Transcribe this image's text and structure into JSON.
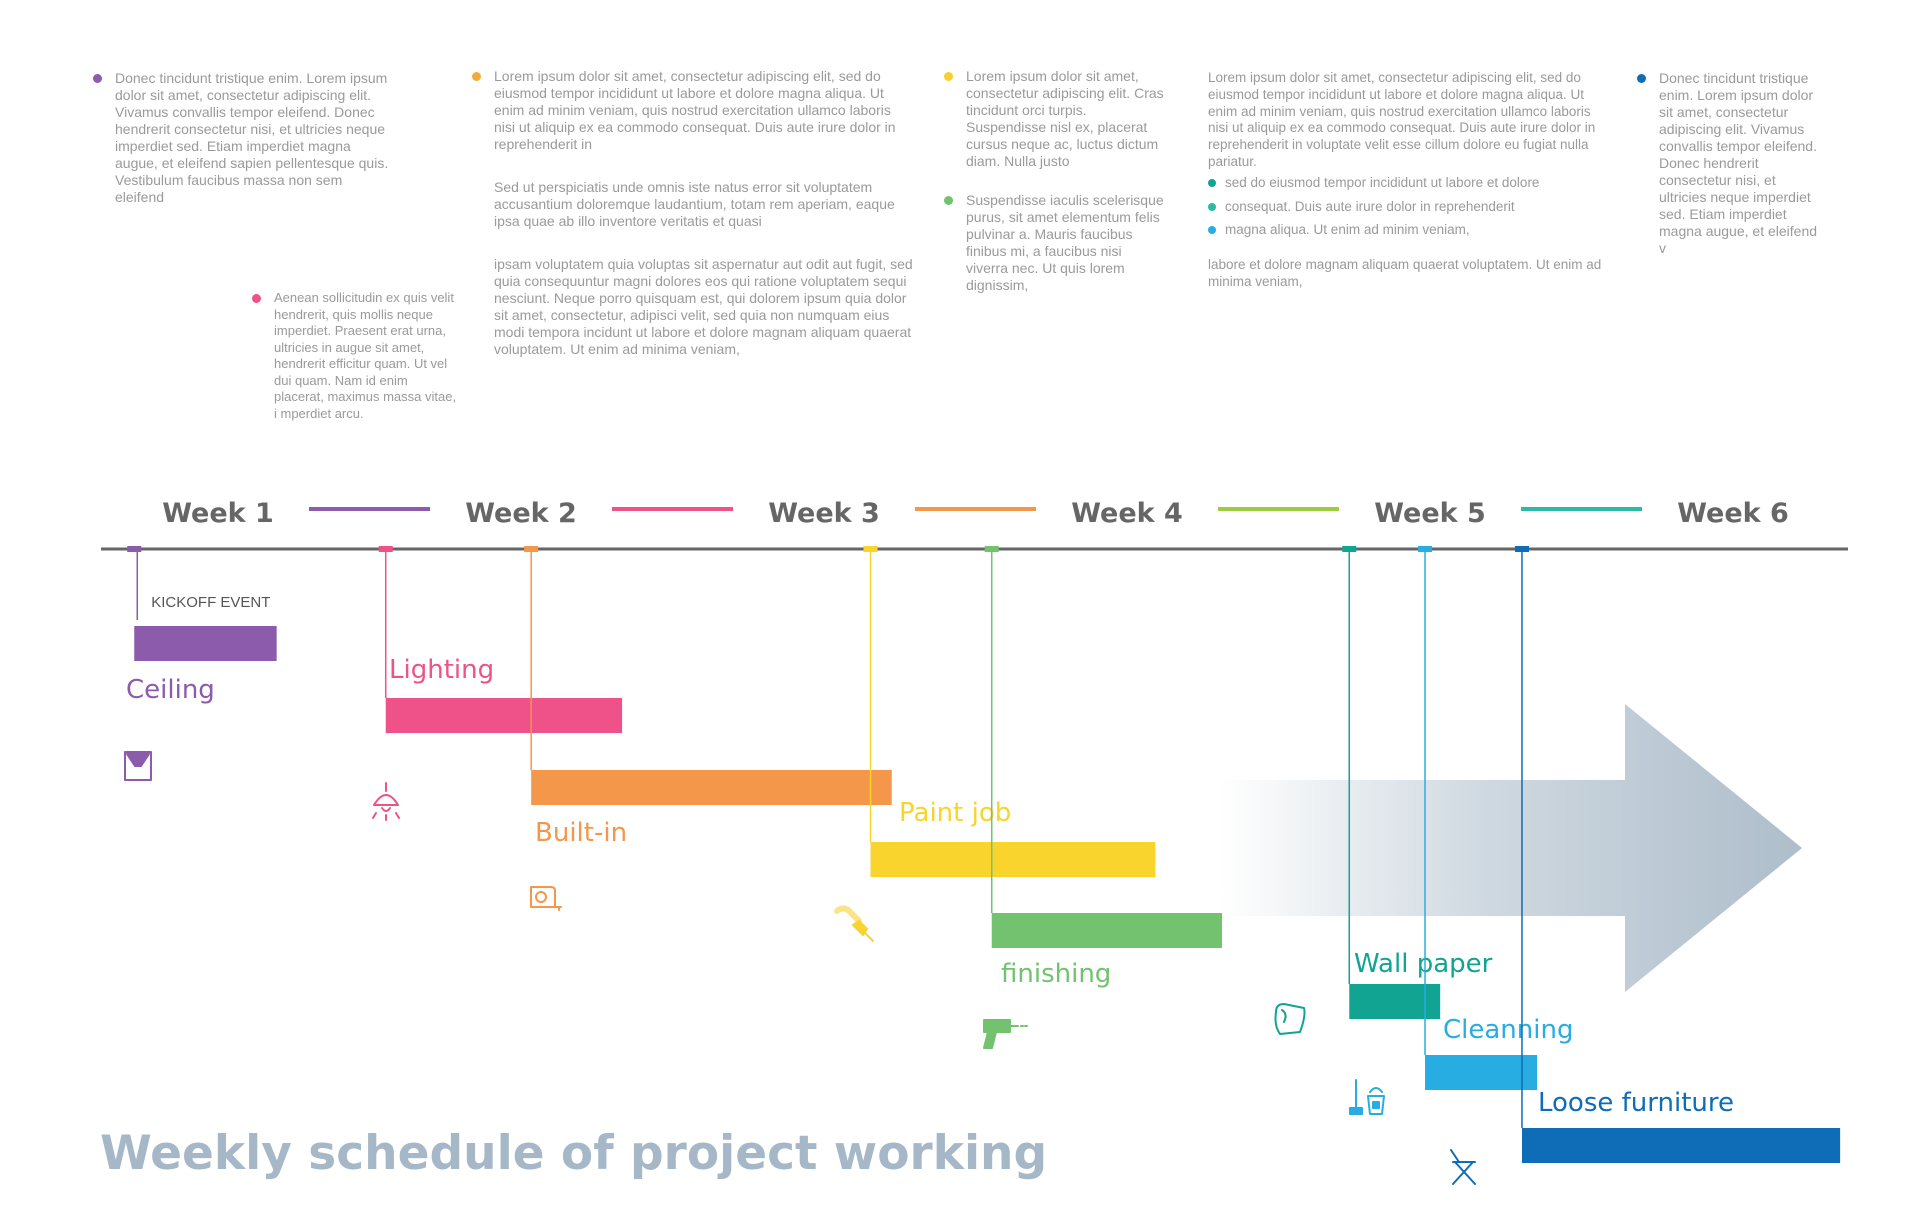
{
  "title": "Weekly schedule of project working",
  "notes": {
    "col1": "Donec tincidunt tristique enim. Lorem ipsum dolor sit amet, consectetur adipiscing elit. Vivamus convallis tempor eleifend. Donec hendrerit consectetur nisi, et ultricies neque imperdiet sed. Etiam imperdiet magna augue, et eleifend sapien pellentesque quis. Vestibulum faucibus massa non sem eleifend",
    "col1b": "Aenean sollicitudin ex quis velit hendrerit, quis mollis neque imperdiet. Praesent erat urna, ultricies in augue sit amet, hendrerit efficitur quam. Ut vel dui quam. Nam id enim placerat, maximus massa vitae, i mperdiet arcu.",
    "col2": [
      "Lorem ipsum dolor sit amet, consectetur adipiscing elit, sed do eiusmod tempor incididunt ut labore et dolore magna aliqua. Ut enim ad minim veniam, quis nostrud exercitation ullamco laboris nisi ut aliquip ex ea commodo consequat. Duis aute irure dolor in reprehenderit in",
      "Sed ut perspiciatis unde omnis iste natus error sit voluptatem accusantium doloremque laudantium, totam rem aperiam, eaque ipsa quae ab illo inventore veritatis et quasi",
      "ipsam voluptatem quia voluptas sit aspernatur aut odit aut fugit, sed quia consequuntur magni dolores eos qui ratione voluptatem sequi nesciunt. Neque porro quisquam est, qui dolorem ipsum quia dolor sit amet, consectetur, adipisci velit, sed quia non numquam eius modi tempora incidunt ut labore et dolore magnam aliquam quaerat voluptatem. Ut enim ad minima veniam,"
    ],
    "col3": [
      "Lorem ipsum dolor sit amet, consectetur adipiscing elit. Cras tincidunt orci turpis. Suspendisse nisl ex, placerat cursus neque ac, luctus dictum diam. Nulla justo",
      "Suspendisse iaculis scelerisque purus, sit amet elementum felis pulvinar a. Mauris faucibus finibus mi, a faucibus nisi viverra nec. Ut quis lorem dignissim,"
    ],
    "col4": {
      "intro": "Lorem ipsum dolor sit amet, consectetur adipiscing elit, sed do eiusmod tempor incididunt ut labore et dolore magna aliqua. Ut enim ad minim veniam, quis nostrud exercitation ullamco laboris nisi ut aliquip ex ea commodo consequat. Duis aute irure dolor in reprehenderit in voluptate velit esse cillum dolore eu fugiat nulla pariatur.",
      "bullets": [
        "sed do eiusmod tempor incididunt ut labore et dolore",
        "consequat. Duis aute irure dolor in reprehenderit",
        "magna aliqua. Ut enim ad minim veniam,"
      ],
      "outro": "labore et dolore magnam aliquam quaerat voluptatem. Ut enim ad minima veniam,"
    },
    "col5": "Donec tincidunt tristique enim. Lorem ipsum dolor sit amet, consectetur adipiscing elit. Vivamus convallis tempor eleifend. Donec hendrerit consectetur nisi, et ultricies neque imperdiet sed. Etiam imperdiet magna augue, et eleifend v"
  },
  "colors": {
    "purple": "#8c5bab",
    "pink": "#ef5289",
    "orange": "#f4974a",
    "yellow": "#f9d42d",
    "green": "#72c270",
    "teal": "#12a493",
    "sky": "#28ade3",
    "blue": "#0f6cb6",
    "axis": "#666666",
    "arrow": "#a9bac8"
  },
  "chart_data": {
    "type": "gantt",
    "time_unit": "week",
    "x_range": [
      0,
      6
    ],
    "weeks": [
      "Week 1",
      "Week 2",
      "Week 3",
      "Week 4",
      "Week 5",
      "Week 6"
    ],
    "week_connector_colors": [
      "#8c5bab",
      "#ef5289",
      "#f4974a",
      "#9dcc40",
      "#2cbaa4"
    ],
    "kickoff": {
      "label": "KICKOFF EVENT",
      "at": 0.08
    },
    "tasks": [
      {
        "name": "Ceiling",
        "start": 0.08,
        "end": 0.55,
        "color": "#8c5bab",
        "icon": "ceiling-lamp-icon"
      },
      {
        "name": "Lighting",
        "start": 0.91,
        "end": 1.69,
        "color": "#ef5289",
        "icon": "pendant-lamp-icon"
      },
      {
        "name": "Built-in",
        "start": 1.39,
        "end": 2.58,
        "color": "#f4974a",
        "icon": "tape-measure-icon"
      },
      {
        "name": "Paint job",
        "start": 2.51,
        "end": 3.45,
        "color": "#f9d42d",
        "icon": "paint-brush-icon"
      },
      {
        "name": "finishing",
        "start": 2.91,
        "end": 3.67,
        "color": "#72c270",
        "icon": "drill-icon"
      },
      {
        "name": "Wall paper",
        "start": 4.09,
        "end": 4.39,
        "color": "#12a493",
        "icon": "wallpaper-roll-icon"
      },
      {
        "name": "Cleanning",
        "start": 4.34,
        "end": 4.71,
        "color": "#28ade3",
        "icon": "mop-bucket-icon"
      },
      {
        "name": "Loose furniture",
        "start": 4.66,
        "end": 5.71,
        "color": "#0f6cb6",
        "icon": "folding-chair-icon"
      }
    ]
  }
}
